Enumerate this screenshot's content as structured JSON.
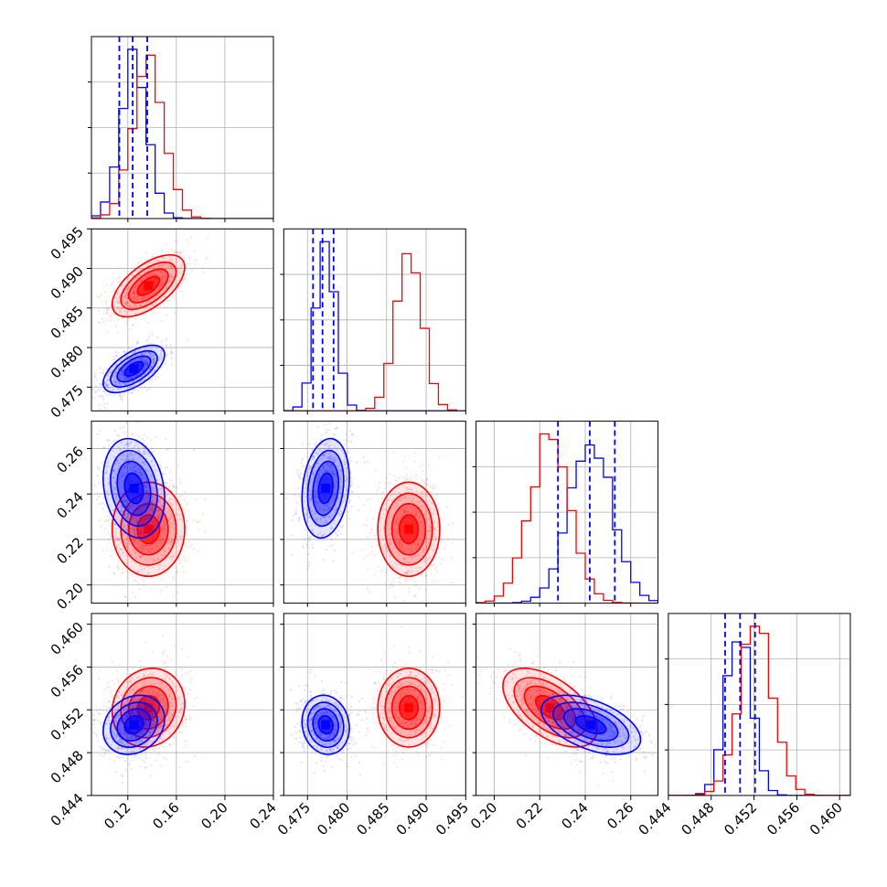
{
  "chart_data": {
    "type": "corner",
    "title": "",
    "n_params": 4,
    "colors": {
      "series_a": "#0000ff",
      "series_b": "#ff0000"
    },
    "series": [
      {
        "name": "blue",
        "color": "#0000ff",
        "mean": [
          0.125,
          0.4773,
          0.2425,
          0.4506
        ],
        "sd": [
          0.011,
          0.0013,
          0.0095,
          0.0012
        ],
        "quantiles": [
          [
            0.113,
            0.124,
            0.136
          ],
          [
            0.4757,
            0.4769,
            0.4783
          ],
          [
            0.228,
            0.242,
            0.253
          ],
          [
            0.4493,
            0.4507,
            0.4521
          ]
        ],
        "corr": {
          "1-0": 0.6,
          "2-0": -0.2,
          "2-1": 0.2,
          "3-0": 0.2,
          "3-1": -0.1,
          "3-2": -0.5
        }
      },
      {
        "name": "red",
        "color": "#ff0000",
        "mean": [
          0.137,
          0.4878,
          0.2245,
          0.4522
        ],
        "sd": [
          0.013,
          0.0017,
          0.009,
          0.0016
        ],
        "corr": {
          "1-0": 0.6,
          "2-0": 0.0,
          "2-1": 0.0,
          "3-0": 0.1,
          "3-1": 0.0,
          "3-2": -0.55
        }
      }
    ],
    "axes": [
      {
        "range": [
          0.09,
          0.24
        ],
        "ticks": [
          "0.12",
          "0.16",
          "0.20",
          "0.24"
        ],
        "values": [
          0.12,
          0.16,
          0.2,
          0.24
        ]
      },
      {
        "range": [
          0.472,
          0.495
        ],
        "ticks": [
          "0.475",
          "0.480",
          "0.485",
          "0.490",
          "0.495"
        ],
        "values": [
          0.475,
          0.48,
          0.485,
          0.49,
          0.495
        ]
      },
      {
        "range": [
          0.192,
          0.272
        ],
        "ticks": [
          "0.20",
          "0.22",
          "0.24",
          "0.26"
        ],
        "values": [
          0.2,
          0.22,
          0.24,
          0.26
        ]
      },
      {
        "range": [
          0.444,
          0.461
        ],
        "ticks": [
          "0.444",
          "0.448",
          "0.452",
          "0.456",
          "0.460"
        ],
        "values": [
          0.444,
          0.448,
          0.452,
          0.456,
          0.46
        ]
      }
    ]
  }
}
